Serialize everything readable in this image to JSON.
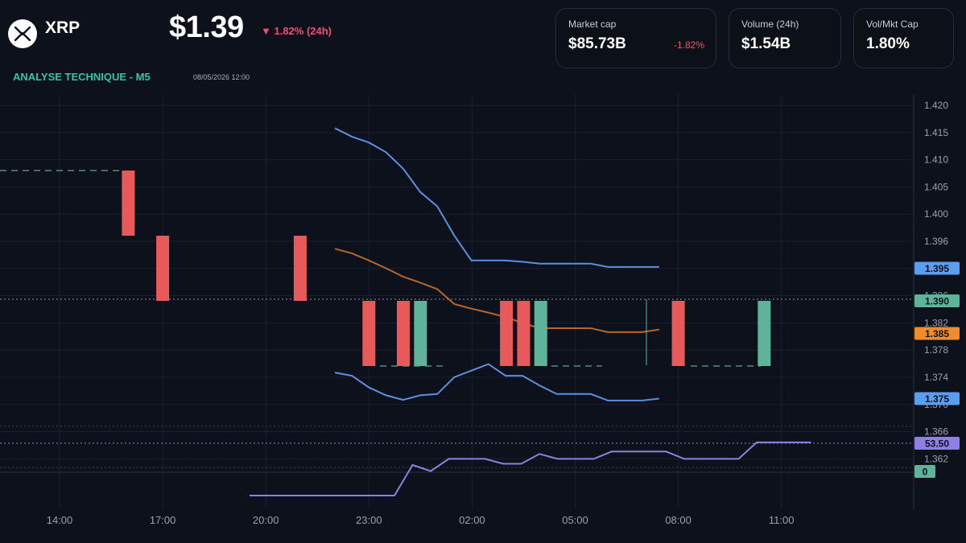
{
  "header": {
    "symbol": "XRP",
    "price": "$1.39",
    "change": "▼ 1.82% (24h)",
    "analysis_title": "ANALYSE TECHNIQUE - M5",
    "analysis_date": "08/05/2026 12:00",
    "logo_icon": "xrp-logo-icon"
  },
  "cards": [
    {
      "label": "Market cap",
      "value": "$85.73B",
      "change": "-1.82%"
    },
    {
      "label": "Volume (24h)",
      "value": "$1.54B"
    },
    {
      "label": "Vol/Mkt Cap",
      "value": "1.80%"
    }
  ],
  "colors": {
    "background": "#0d111c",
    "up": "#5fb39a",
    "down": "#e85a5a",
    "band": "#5b8fe0",
    "middle": "#b5672b",
    "rsi": "#8f7fe0",
    "accent": "#2ec7a4",
    "negative": "#f0506e"
  },
  "chart_data": {
    "type": "candlestick",
    "x_ticks": [
      "14:00",
      "17:00",
      "20:00",
      "23:00",
      "02:00",
      "05:00",
      "08:00",
      "11:00"
    ],
    "y_ticks": [
      "1.420",
      "1.415",
      "1.410",
      "1.405",
      "1.400",
      "1.396",
      "1.390",
      "1.386",
      "1.382",
      "1.378",
      "1.374",
      "1.370",
      "1.366",
      "1.362"
    ],
    "y_range": [
      1.36,
      1.422
    ],
    "grid": true,
    "candles": [
      {
        "t": "16:00",
        "open": 1.41,
        "close": 1.4
      },
      {
        "t": "17:00",
        "open": 1.4,
        "close": 1.39
      },
      {
        "t": "21:00",
        "open": 1.4,
        "close": 1.39
      },
      {
        "t": "23:00",
        "open": 1.39,
        "close": 1.38
      },
      {
        "t": "00:00",
        "open": 1.39,
        "close": 1.38
      },
      {
        "t": "00:30",
        "open": 1.38,
        "close": 1.39
      },
      {
        "t": "03:00",
        "open": 1.39,
        "close": 1.38
      },
      {
        "t": "03:30",
        "open": 1.39,
        "close": 1.38
      },
      {
        "t": "04:00",
        "open": 1.38,
        "close": 1.39
      },
      {
        "t": "08:00",
        "open": 1.39,
        "close": 1.38
      },
      {
        "t": "10:30",
        "open": 1.38,
        "close": 1.39
      }
    ],
    "bollinger": {
      "upper": [
        1.4165,
        1.4152,
        1.4143,
        1.4128,
        1.4103,
        1.4067,
        1.4045,
        1.4,
        1.3962,
        1.3962,
        1.3962,
        1.396,
        1.3957,
        1.3957,
        1.3957,
        1.3957,
        1.3952,
        1.3952,
        1.3952,
        1.3952
      ],
      "middle": [
        1.398,
        1.3973,
        1.3962,
        1.395,
        1.3937,
        1.3928,
        1.3918,
        1.3895,
        1.3888,
        1.3882,
        1.3875,
        1.3866,
        1.3858,
        1.3858,
        1.3858,
        1.3858,
        1.3852,
        1.3852,
        1.3852,
        1.3856
      ],
      "lower": [
        1.379,
        1.3785,
        1.3767,
        1.3755,
        1.3748,
        1.3755,
        1.3757,
        1.3783,
        1.3793,
        1.3803,
        1.3785,
        1.3785,
        1.377,
        1.3757,
        1.3757,
        1.3757,
        1.3747,
        1.3747,
        1.3747,
        1.375
      ]
    },
    "rsi": [
      10,
      10,
      10,
      10,
      10,
      10,
      10,
      10,
      10,
      35,
      30,
      40,
      40,
      40,
      36,
      36,
      44,
      40,
      40,
      40,
      46,
      46,
      46,
      46,
      40,
      40,
      40,
      40,
      53.5,
      53.5,
      53.5,
      53.5
    ],
    "price_labels": [
      {
        "text": "1.395",
        "value": 1.395,
        "color": "#5b9ef0"
      },
      {
        "text": "1.390",
        "value": 1.39,
        "color": "#5fb39a"
      },
      {
        "text": "1.385",
        "value": 1.385,
        "color": "#f08c2a"
      },
      {
        "text": "1.375",
        "value": 1.375,
        "color": "#5b9ef0"
      },
      {
        "text": "53.50",
        "value": 53.5,
        "color": "#8f7fe0"
      },
      {
        "text": "0",
        "value": 0,
        "color": "#5fb39a"
      }
    ]
  }
}
